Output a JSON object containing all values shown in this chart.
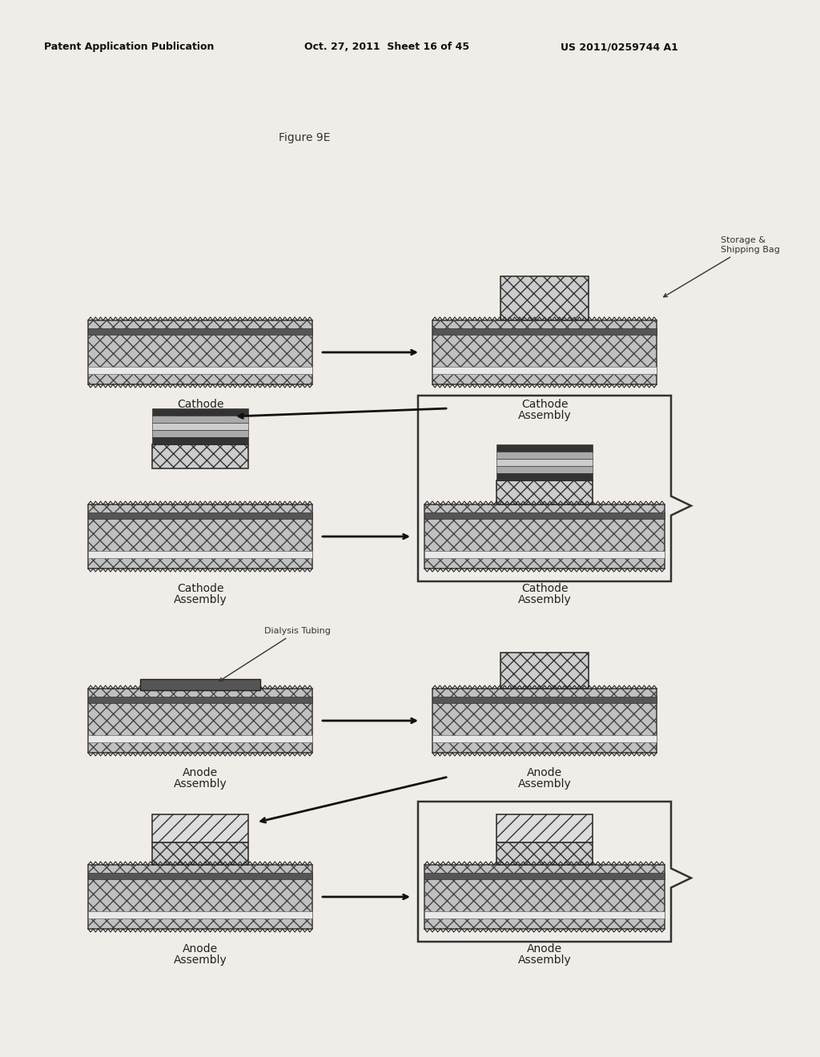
{
  "title": "Figure 9E",
  "header_left": "Patent Application Publication",
  "header_mid": "Oct. 27, 2011  Sheet 16 of 45",
  "header_right": "US 2011/0259744 A1",
  "bg_color": "#f0ede8",
  "annotations": {
    "storage_shipping": "Storage &\nShipping Bag",
    "dialysis_tubing": "Dialysis Tubing"
  }
}
